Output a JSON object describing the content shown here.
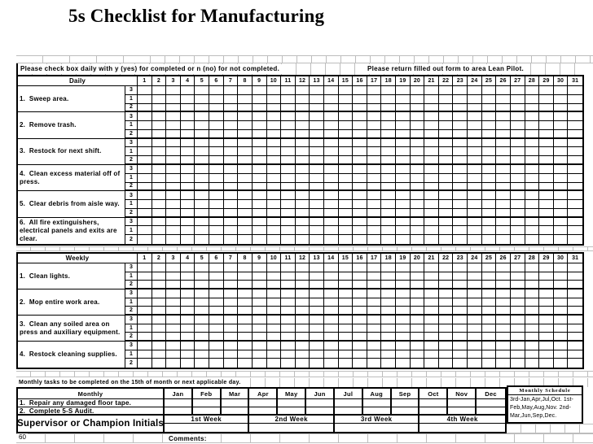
{
  "title": "5s Checklist for Manufacturing",
  "page_number": "60",
  "instructions": {
    "daily_note": "Please check box daily with y (yes) for completed or n (no) for not completed.",
    "return_note": "Please return filled out form to area Lean Pilot."
  },
  "shift_labels": [
    "3",
    "1",
    "2"
  ],
  "day_columns": [
    "1",
    "2",
    "3",
    "4",
    "5",
    "6",
    "7",
    "8",
    "9",
    "10",
    "11",
    "12",
    "13",
    "14",
    "15",
    "16",
    "17",
    "18",
    "19",
    "20",
    "21",
    "22",
    "23",
    "24",
    "25",
    "26",
    "27",
    "28",
    "29",
    "30",
    "31"
  ],
  "daily_section": {
    "header": "Daily",
    "tasks": [
      "1.  Sweep area.",
      "2.  Remove trash.",
      "3.  Restock for next shift.",
      "4.  Clean excess material off of press.",
      "5.  Clear debris from aisle way.",
      "6.  All fire extinguishers, electrical panels and exits are clear."
    ]
  },
  "weekly_section": {
    "header": "Weekly",
    "tasks": [
      "1.  Clean lights.",
      "2.  Mop entire work area.",
      "3.  Clean any soiled area on press and auxiliary equipment.",
      "4.  Restock cleaning supplies."
    ]
  },
  "monthly_section": {
    "note": "Monthly tasks to be completed on the 15th of month or next applicable day.",
    "header": "Monthly",
    "month_columns": [
      "Jan",
      "Feb",
      "Mar",
      "Apr",
      "May",
      "Jun",
      "Jul",
      "Aug",
      "Sep",
      "Oct",
      "Nov",
      "Dec"
    ],
    "tasks": [
      "1.  Repair any damaged floor tape.",
      "2.  Complete 5-S Audit."
    ],
    "week_headers": [
      "1st Week",
      "2nd Week",
      "3rd Week",
      "4th Week"
    ],
    "supervisor_label": "Supervisor or Champion Initials"
  },
  "schedule_box": {
    "title": "Monthly Schedule",
    "text": "3rd-Jan,Apr,Jul,Oct.  1st-Feb,May,Aug,Nov.  2nd-Mar,Jun,Sep,Dec."
  },
  "comments_label": "Comments:",
  "colors": {
    "border": "#000000",
    "gridline": "#bdbdbd",
    "background": "#ffffff",
    "text": "#000000"
  }
}
